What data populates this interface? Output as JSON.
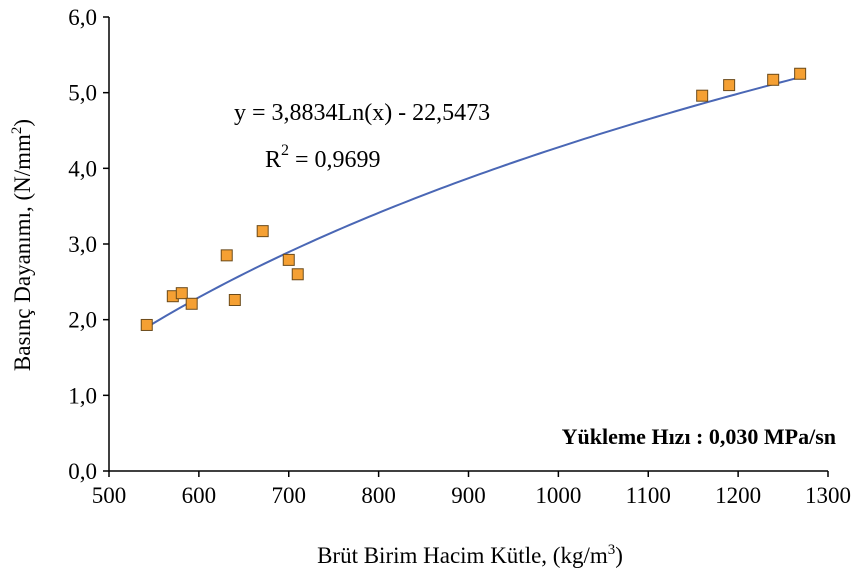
{
  "chart_data": {
    "type": "scatter",
    "x_label": {
      "text": "Brüt Birim Hacim Kütle, (kg/m",
      "sup": "3",
      "end": ")"
    },
    "y_label": {
      "text": "Basınç Dayanımı, (N/mm",
      "sup": "2",
      "end": ")"
    },
    "x": [
      542,
      571,
      581,
      592,
      631,
      640,
      671,
      700,
      710,
      1160,
      1190,
      1239,
      1269
    ],
    "series": [
      {
        "color": "#f5a033",
        "values": [
          1.93,
          2.31,
          2.35,
          2.21,
          2.85,
          2.26,
          3.17,
          2.79,
          2.6,
          4.96,
          5.1,
          5.17,
          5.25
        ]
      }
    ],
    "xlim": [
      500,
      1300
    ],
    "xticks": [
      500,
      600,
      700,
      800,
      900,
      1000,
      1100,
      1200,
      1300
    ],
    "ylim": [
      0,
      6
    ],
    "yticks": [
      {
        "value": 0,
        "label": "0,0"
      },
      {
        "value": 1,
        "label": "1,0"
      },
      {
        "value": 2,
        "label": "2,0"
      },
      {
        "value": 3,
        "label": "3,0"
      },
      {
        "value": 4,
        "label": "4,0"
      },
      {
        "value": 5,
        "label": "5,0"
      },
      {
        "value": 6,
        "label": "6,0"
      }
    ],
    "trendline": {
      "kind": "logarithmic",
      "a": 3.8834,
      "b": -22.5473,
      "color": "#4a67b5",
      "equation": "y = 3,8834Ln(x) - 22,5473",
      "r2_label": {
        "text": "R",
        "sup": "2",
        "end": " = 0,9699"
      }
    },
    "annotation": "Yükleme Hızı : 0,030 MPa/sn"
  }
}
